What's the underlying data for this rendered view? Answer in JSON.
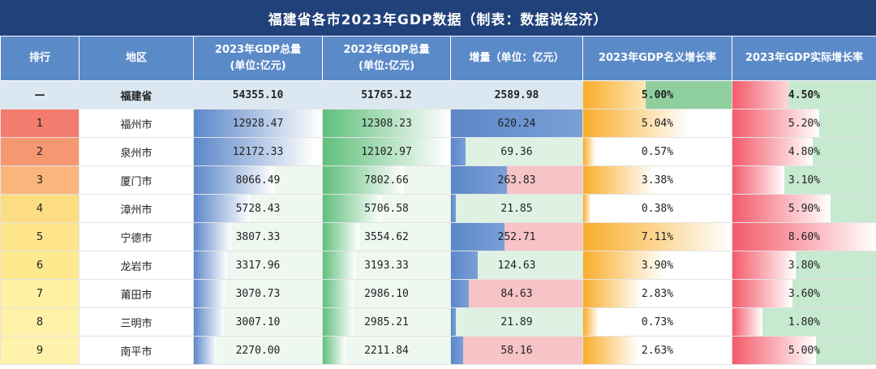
{
  "title": "福建省各市2023年GDP数据（制表：数据说经济）",
  "columns": [
    {
      "label": "排行"
    },
    {
      "label": "地区"
    },
    {
      "label": "2023年GDP总量",
      "sub": "(单位:亿元)"
    },
    {
      "label": "2022年GDP总量",
      "sub": "(单位:亿元)"
    },
    {
      "label": "增量（单位：亿元）"
    },
    {
      "label": "2023年GDP名义增长率"
    },
    {
      "label": "2023年GDP实际增长率"
    }
  ],
  "colors": {
    "header_bg": "#5b8ac8",
    "title_bg": "#20417a",
    "blue": "#5b87c9",
    "green": "#5fbf7b",
    "red": "#f45a6a",
    "orange": "#f9ad2a"
  },
  "chart_data": {
    "type": "table",
    "title": "福建省各市2023年GDP数据（制表：数据说经济）",
    "province": {
      "rank": "—",
      "region": "福建省",
      "gdp2023": "54355.10",
      "gdp2022": "51765.12",
      "increase": "2589.98",
      "nominal": "5.00%",
      "real": "4.50%"
    },
    "rows": [
      {
        "rank": "1",
        "region": "福州市",
        "gdp2023": "12928.47",
        "gdp2022": "12308.23",
        "increase": "620.24",
        "nominal": "5.04%",
        "real": "5.20%"
      },
      {
        "rank": "2",
        "region": "泉州市",
        "gdp2023": "12172.33",
        "gdp2022": "12102.97",
        "increase": "69.36",
        "nominal": "0.57%",
        "real": "4.80%"
      },
      {
        "rank": "3",
        "region": "厦门市",
        "gdp2023": "8066.49",
        "gdp2022": "7802.66",
        "increase": "263.83",
        "nominal": "3.38%",
        "real": "3.10%"
      },
      {
        "rank": "4",
        "region": "漳州市",
        "gdp2023": "5728.43",
        "gdp2022": "5706.58",
        "increase": "21.85",
        "nominal": "0.38%",
        "real": "5.90%"
      },
      {
        "rank": "5",
        "region": "宁德市",
        "gdp2023": "3807.33",
        "gdp2022": "3554.62",
        "increase": "252.71",
        "nominal": "7.11%",
        "real": "8.60%"
      },
      {
        "rank": "6",
        "region": "龙岩市",
        "gdp2023": "3317.96",
        "gdp2022": "3193.33",
        "increase": "124.63",
        "nominal": "3.90%",
        "real": "3.80%"
      },
      {
        "rank": "7",
        "region": "莆田市",
        "gdp2023": "3070.73",
        "gdp2022": "2986.10",
        "increase": "84.63",
        "nominal": "2.83%",
        "real": "3.60%"
      },
      {
        "rank": "8",
        "region": "三明市",
        "gdp2023": "3007.10",
        "gdp2022": "2985.21",
        "increase": "21.89",
        "nominal": "0.73%",
        "real": "1.80%"
      },
      {
        "rank": "9",
        "region": "南平市",
        "gdp2023": "2270.00",
        "gdp2022": "2211.84",
        "increase": "58.16",
        "nominal": "2.63%",
        "real": "5.00%"
      }
    ]
  }
}
